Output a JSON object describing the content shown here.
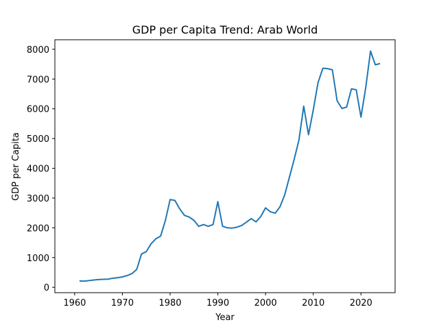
{
  "chart_data": {
    "type": "line",
    "title": "GDP per Capita Trend: Arab World",
    "xlabel": "Year",
    "ylabel": "GDP per Capita",
    "xlim": [
      1955.85,
      2027.15
    ],
    "ylim": [
      -180,
      8320
    ],
    "xticks": [
      1960,
      1970,
      1980,
      1990,
      2000,
      2010,
      2020
    ],
    "yticks": [
      0,
      1000,
      2000,
      3000,
      4000,
      5000,
      6000,
      7000,
      8000
    ],
    "grid": false,
    "line_color": "#1f77b4",
    "series": [
      {
        "x": [
          1961,
          1962,
          1963,
          1964,
          1965,
          1966,
          1967,
          1968,
          1969,
          1970,
          1971,
          1972,
          1973,
          1974,
          1975,
          1976,
          1977,
          1978,
          1979,
          1980,
          1981,
          1982,
          1983,
          1984,
          1985,
          1986,
          1987,
          1988,
          1989,
          1990,
          1991,
          1992,
          1993,
          1994,
          1995,
          1996,
          1997,
          1998,
          1999,
          2000,
          2001,
          2002,
          2003,
          2004,
          2005,
          2006,
          2007,
          2008,
          2009,
          2010,
          2011,
          2012,
          2013,
          2014,
          2015,
          2016,
          2017,
          2018,
          2019,
          2020,
          2021,
          2022,
          2023,
          2024
        ],
        "values": [
          215,
          210,
          225,
          245,
          260,
          270,
          275,
          305,
          325,
          350,
          395,
          460,
          600,
          1120,
          1200,
          1460,
          1630,
          1720,
          2240,
          2950,
          2920,
          2640,
          2420,
          2360,
          2250,
          2050,
          2110,
          2050,
          2110,
          2880,
          2050,
          2000,
          1990,
          2020,
          2080,
          2190,
          2310,
          2200,
          2380,
          2670,
          2540,
          2490,
          2700,
          3100,
          3700,
          4300,
          4950,
          6090,
          5130,
          5960,
          6880,
          7360,
          7350,
          7310,
          6270,
          6010,
          6060,
          6670,
          6640,
          5720,
          6720,
          7940,
          7480,
          7520
        ]
      }
    ]
  }
}
